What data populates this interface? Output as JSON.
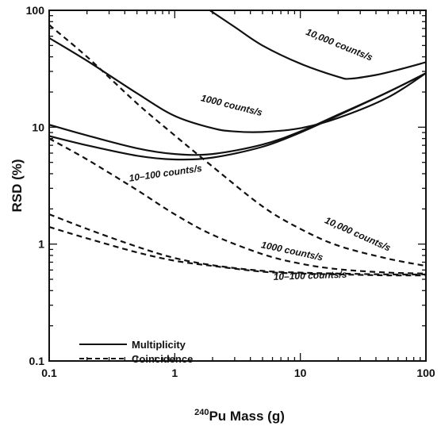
{
  "chart_data": {
    "type": "line",
    "title": "",
    "xlabel_sup": "240",
    "xlabel_main": "Pu Mass (g)",
    "ylabel": "RSD (%)",
    "x_scale": "log",
    "y_scale": "log",
    "xlim": [
      0.1,
      100
    ],
    "ylim": [
      0.1,
      100
    ],
    "x_ticks": [
      0.1,
      1,
      10,
      100
    ],
    "x_tick_labels": [
      "0.1",
      "1",
      "10",
      "100"
    ],
    "y_ticks": [
      0.1,
      1,
      10,
      100
    ],
    "y_tick_labels": [
      "0.1",
      "1",
      "10",
      "100"
    ],
    "grid": false,
    "legend_position": "bottom-left",
    "legend": [
      {
        "label": "Multiplicity",
        "style": "solid"
      },
      {
        "label": "Coincidence",
        "style": "dashed"
      }
    ],
    "series": [
      {
        "group": "Multiplicity",
        "rate": "10,000 counts/s",
        "style": "solid",
        "x": [
          1.9,
          3,
          5,
          10,
          20,
          25,
          40,
          60,
          100
        ],
        "y": [
          100,
          72,
          50,
          35,
          27,
          26,
          28,
          31,
          36
        ]
      },
      {
        "group": "Multiplicity",
        "rate": "1000 counts/s",
        "style": "solid",
        "x": [
          0.1,
          0.2,
          0.5,
          1,
          2,
          3,
          5,
          10,
          20,
          50,
          100
        ],
        "y": [
          58,
          37,
          19.5,
          12.5,
          9.8,
          9.2,
          9.1,
          9.8,
          12,
          18,
          29
        ]
      },
      {
        "group": "Multiplicity",
        "rate": "10-100 counts/s (upper)",
        "style": "solid",
        "x": [
          0.1,
          0.2,
          0.5,
          1,
          2,
          5,
          10,
          20,
          50,
          100
        ],
        "y": [
          10.5,
          8.5,
          6.6,
          5.9,
          5.9,
          7.1,
          9.2,
          12.8,
          20,
          29
        ]
      },
      {
        "group": "Multiplicity",
        "rate": "10-100 counts/s (lower)",
        "style": "solid",
        "x": [
          0.1,
          0.2,
          0.5,
          1,
          2,
          5,
          10,
          20,
          50,
          100
        ],
        "y": [
          8.4,
          7.0,
          5.7,
          5.3,
          5.5,
          6.8,
          9.0,
          12.6,
          20,
          29
        ]
      },
      {
        "group": "Coincidence",
        "rate": "10,000 counts/s",
        "style": "dashed",
        "x": [
          0.1,
          0.2,
          0.5,
          1,
          2,
          5,
          10,
          20,
          50,
          100
        ],
        "y": [
          75,
          40,
          16,
          8.5,
          4.6,
          2.1,
          1.35,
          0.97,
          0.75,
          0.65
        ]
      },
      {
        "group": "Coincidence",
        "rate": "1000 counts/s",
        "style": "dashed",
        "x": [
          0.1,
          0.2,
          0.5,
          1,
          2,
          5,
          10,
          20,
          50,
          100
        ],
        "y": [
          8.0,
          5.3,
          2.9,
          1.8,
          1.2,
          0.82,
          0.68,
          0.61,
          0.57,
          0.56
        ]
      },
      {
        "group": "Coincidence",
        "rate": "10-100 counts/s (upper)",
        "style": "dashed",
        "x": [
          0.1,
          0.2,
          0.5,
          1,
          2,
          5,
          10,
          20,
          50,
          100
        ],
        "y": [
          1.8,
          1.35,
          0.95,
          0.76,
          0.66,
          0.59,
          0.57,
          0.56,
          0.55,
          0.55
        ]
      },
      {
        "group": "Coincidence",
        "rate": "10-100 counts/s (lower)",
        "style": "dashed",
        "x": [
          0.1,
          0.2,
          0.5,
          1,
          2,
          5,
          10,
          20,
          50,
          100
        ],
        "y": [
          1.4,
          1.12,
          0.85,
          0.72,
          0.65,
          0.58,
          0.56,
          0.55,
          0.54,
          0.54
        ]
      }
    ],
    "annotations": [
      {
        "text": "10,000 counts/s",
        "x": 20,
        "y": 48,
        "angle": 22
      },
      {
        "text": "1000 counts/s",
        "x": 2.8,
        "y": 14.5,
        "angle": 14
      },
      {
        "text": "10–100 counts/s",
        "x": 0.85,
        "y": 3.8,
        "angle": -8
      },
      {
        "text": "10,000 counts/s",
        "x": 28,
        "y": 1.15,
        "angle": 24
      },
      {
        "text": "1000 counts/s",
        "x": 8.5,
        "y": 0.82,
        "angle": 12
      },
      {
        "text": "10–100 counts/s",
        "x": 12,
        "y": 0.505,
        "angle": -2
      }
    ]
  }
}
